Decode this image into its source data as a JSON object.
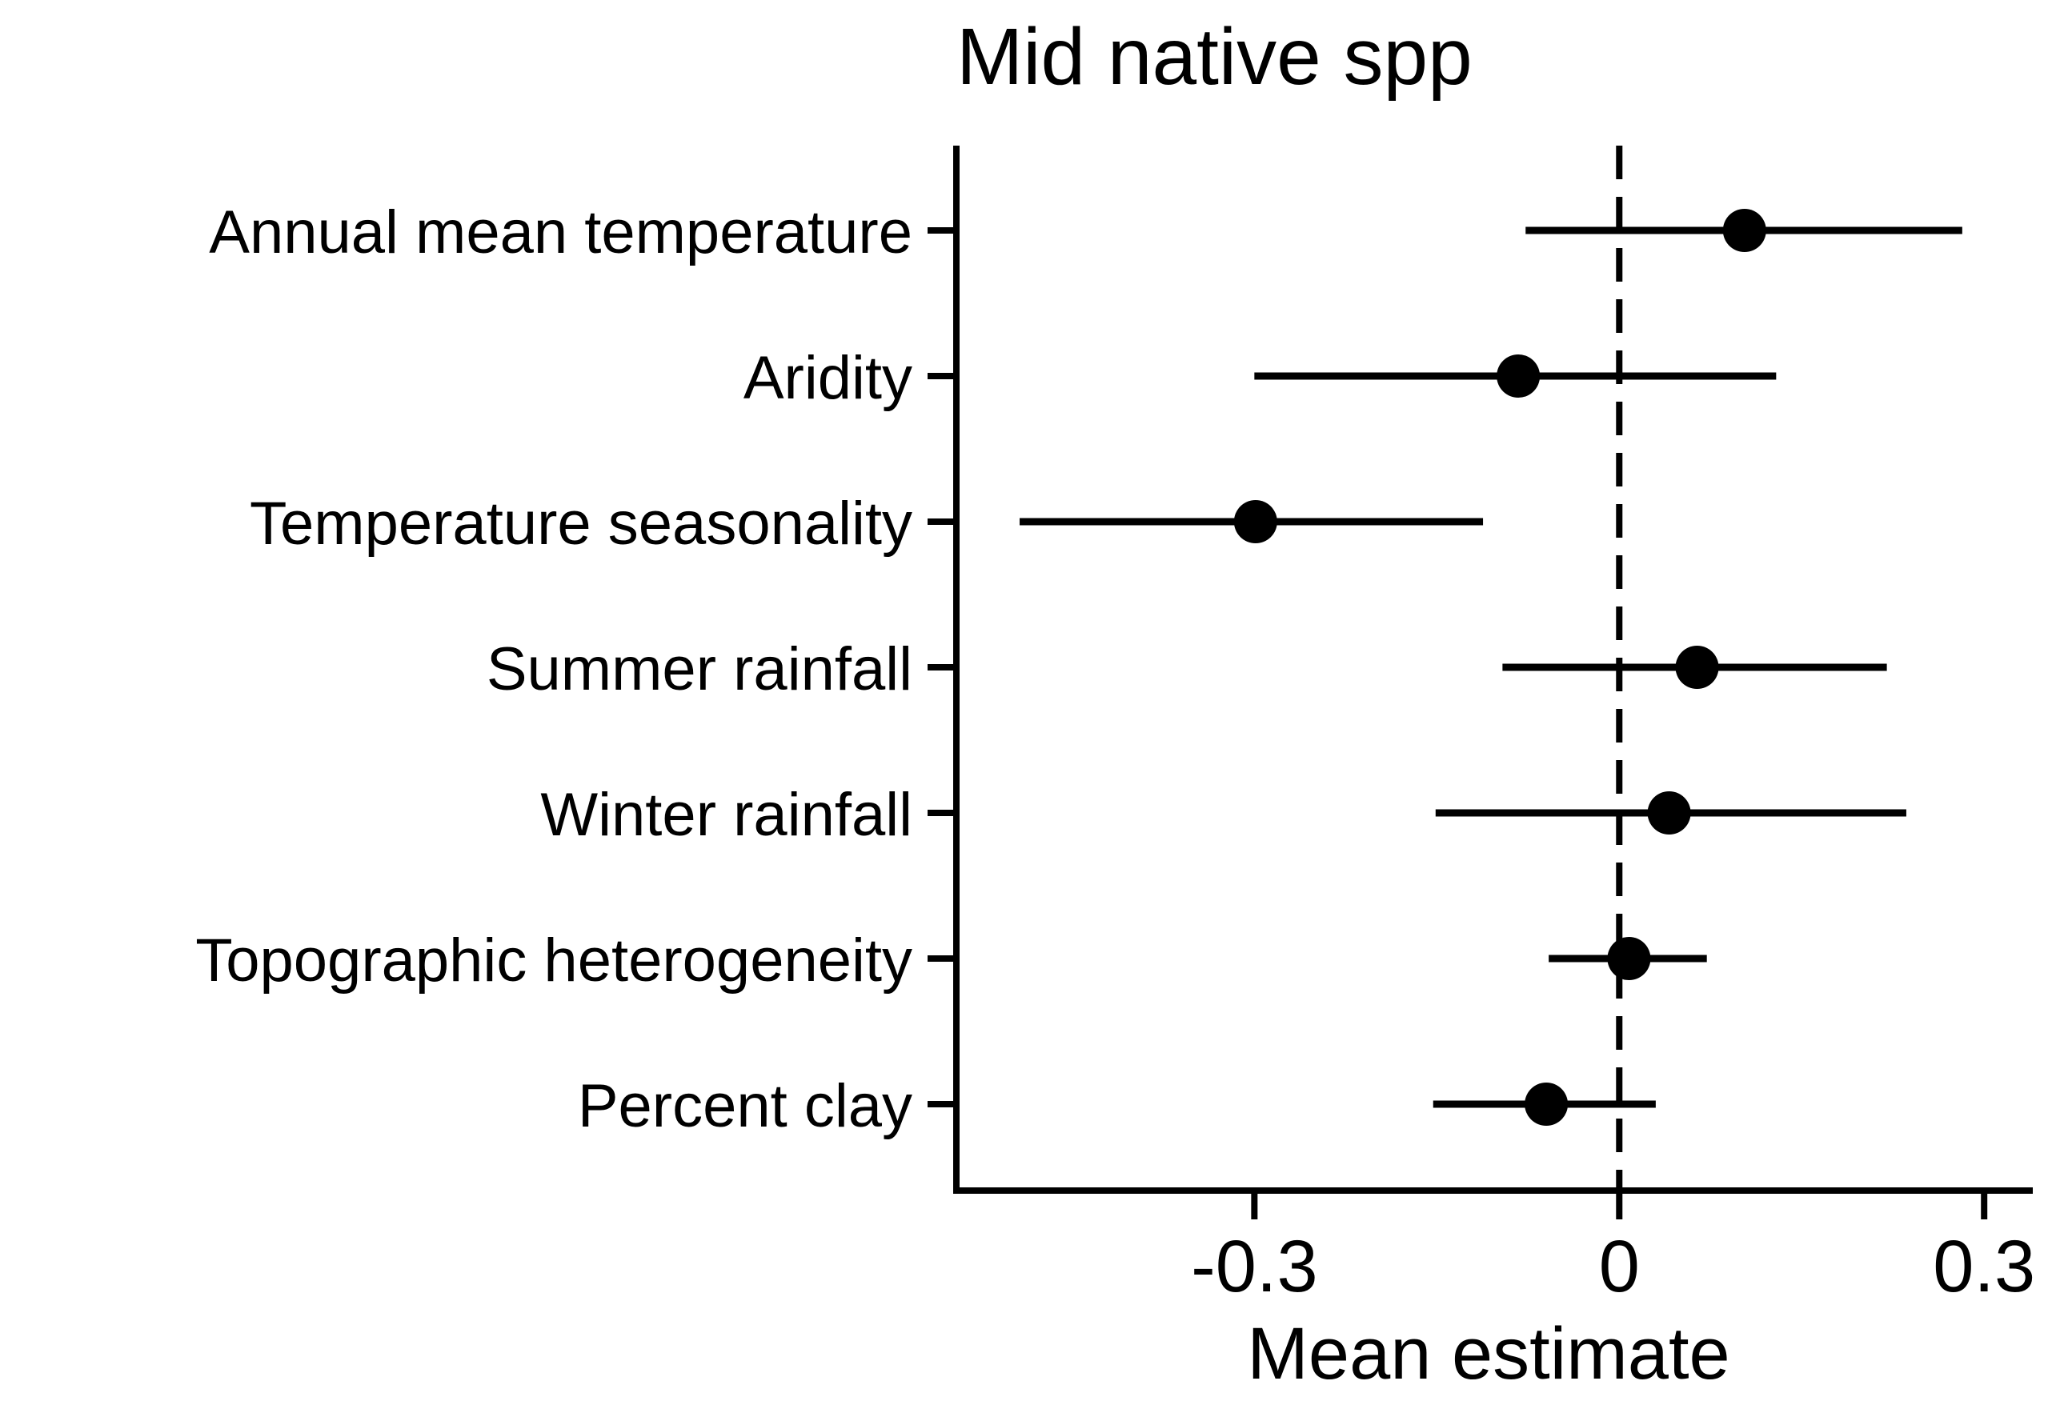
{
  "chart_data": {
    "type": "forest",
    "title": "Mid native spp",
    "xlabel": "Mean estimate",
    "ylabel": "",
    "xlim": [
      -0.545,
      0.34
    ],
    "xticks": [
      -0.3,
      0,
      0.3
    ],
    "xtick_labels": [
      "-0.3",
      "0",
      "0.3"
    ],
    "reference_line": {
      "x": 0,
      "style": "dashed"
    },
    "grid": false,
    "legend": "none",
    "categories": [
      "Annual mean temperature",
      "Aridity",
      "Temperature seasonality",
      "Summer rainfall",
      "Winter rainfall",
      "Topographic heterogeneity",
      "Percent clay"
    ],
    "estimates": [
      0.103,
      -0.083,
      -0.299,
      0.064,
      0.041,
      0.008,
      -0.06
    ],
    "lower": [
      -0.077,
      -0.3,
      -0.493,
      -0.096,
      -0.151,
      -0.058,
      -0.153
    ],
    "upper": [
      0.282,
      0.129,
      -0.112,
      0.22,
      0.236,
      0.072,
      0.03
    ],
    "color": "#000000"
  }
}
